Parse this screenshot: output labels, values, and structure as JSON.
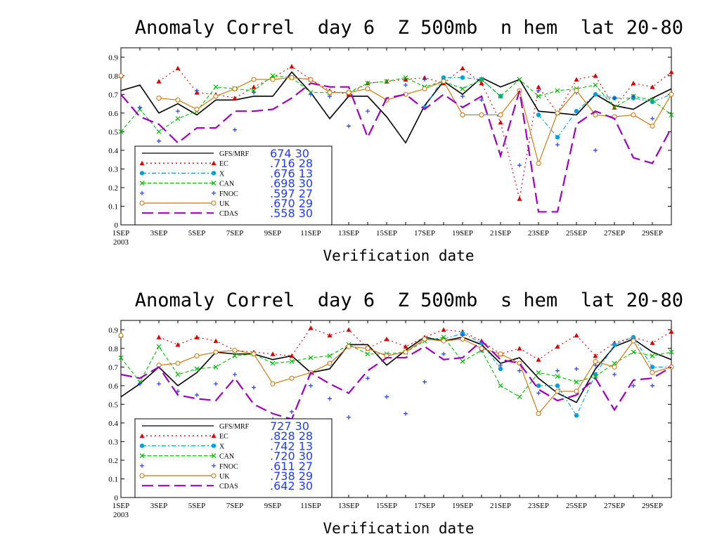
{
  "chart_data": [
    {
      "type": "line",
      "title": "Anomaly Correl  day 6  Z 500mb  n hem  lat 20-80",
      "xlabel": "Verification date",
      "ylabel": "",
      "x_tick_labels": [
        "1SEP",
        "3SEP",
        "5SEP",
        "7SEP",
        "9SEP",
        "11SEP",
        "13SEP",
        "15SEP",
        "17SEP",
        "19SEP",
        "21SEP",
        "23SEP",
        "25SEP",
        "27SEP",
        "29SEP"
      ],
      "x_year_label": "2003",
      "y_tick_labels": [
        "0",
        "0.1",
        "0.2",
        "0.3",
        "0.4",
        "0.5",
        "0.6",
        "0.7",
        "0.8",
        "0.9"
      ],
      "xlim": [
        1,
        30
      ],
      "ylim": [
        0,
        0.95
      ],
      "x": [
        1,
        2,
        3,
        4,
        5,
        6,
        7,
        8,
        9,
        10,
        11,
        12,
        13,
        14,
        15,
        16,
        17,
        18,
        19,
        20,
        21,
        22,
        23,
        24,
        25,
        26,
        27,
        28,
        29,
        30
      ],
      "series": [
        {
          "name": "GFS/MRF",
          "stats": "674  30",
          "color": "#000000",
          "style": "solid",
          "marker": "none",
          "values": [
            0.72,
            0.75,
            0.6,
            0.65,
            0.59,
            0.67,
            0.67,
            0.69,
            0.69,
            0.82,
            0.71,
            0.57,
            0.69,
            0.69,
            0.58,
            0.44,
            0.64,
            0.77,
            0.7,
            0.79,
            0.74,
            0.78,
            0.61,
            0.6,
            0.59,
            0.7,
            0.64,
            0.62,
            0.68,
            0.73
          ]
        },
        {
          "name": "EC",
          "stats": ".716  28",
          "color": "#e00000",
          "style": "dotted",
          "marker": "triangle",
          "values": [
            0.8,
            null,
            0.77,
            0.84,
            0.71,
            0.7,
            0.68,
            0.74,
            0.79,
            0.85,
            0.78,
            0.72,
            0.7,
            0.76,
            0.77,
            0.78,
            0.79,
            0.76,
            0.84,
            0.76,
            0.55,
            0.14,
            0.74,
            0.6,
            0.78,
            0.8,
            0.63,
            0.76,
            0.74,
            0.82
          ]
        },
        {
          "name": "X",
          "stats": ".676  13",
          "color": "#00a0e0",
          "style": "dashdot",
          "marker": "dot",
          "values": [
            null,
            null,
            null,
            null,
            null,
            null,
            null,
            null,
            null,
            null,
            null,
            null,
            null,
            null,
            null,
            null,
            0.63,
            0.79,
            0.79,
            0.78,
            0.69,
            null,
            0.59,
            0.47,
            0.61,
            0.7,
            0.68,
            0.68,
            0.66,
            0.7
          ]
        },
        {
          "name": "CAN",
          "stats": ".698  30",
          "color": "#00c000",
          "style": "dashed",
          "marker": "x",
          "values": [
            0.5,
            0.62,
            0.5,
            0.57,
            0.61,
            0.74,
            0.73,
            0.72,
            0.8,
            0.79,
            0.71,
            0.71,
            0.71,
            0.76,
            0.77,
            0.79,
            0.74,
            0.77,
            0.73,
            0.78,
            0.69,
            0.78,
            0.69,
            0.72,
            0.73,
            0.75,
            0.63,
            0.69,
            0.67,
            0.59
          ]
        },
        {
          "name": "FNOC",
          "stats": ".597  27",
          "color": "#1f3bff",
          "style": "none",
          "marker": "plus",
          "values": [
            null,
            0.63,
            0.45,
            0.61,
            0.72,
            null,
            0.51,
            0.71,
            0.78,
            0.79,
            0.7,
            0.69,
            0.53,
            0.61,
            0.67,
            0.75,
            0.78,
            0.77,
            0.69,
            0.67,
            0.59,
            0.32,
            0.72,
            0.43,
            0.71,
            0.4,
            0.68,
            0.69,
            0.57,
            null
          ]
        },
        {
          "name": "UK",
          "stats": ".670  29",
          "color": "#d07000",
          "style": "solid",
          "marker": "circle",
          "values": [
            0.8,
            null,
            0.68,
            0.67,
            0.62,
            0.69,
            0.73,
            0.78,
            0.78,
            0.79,
            0.78,
            0.71,
            0.71,
            0.73,
            0.67,
            0.7,
            0.73,
            0.77,
            0.59,
            0.59,
            0.59,
            0.72,
            0.33,
            0.6,
            0.72,
            0.59,
            0.58,
            0.59,
            0.53,
            0.7
          ]
        },
        {
          "name": "CDAS",
          "stats": ".558  30",
          "color": "#a000c0",
          "style": "longdash",
          "marker": "none",
          "values": [
            0.7,
            0.58,
            0.54,
            0.44,
            0.52,
            0.52,
            0.61,
            0.61,
            0.62,
            0.68,
            0.76,
            0.74,
            0.74,
            0.47,
            0.68,
            0.7,
            0.62,
            0.7,
            0.63,
            0.69,
            0.37,
            0.72,
            0.07,
            0.07,
            0.54,
            0.61,
            0.57,
            0.36,
            0.33,
            0.52
          ]
        }
      ]
    },
    {
      "type": "line",
      "title": "Anomaly Correl  day 6  Z 500mb  s hem  lat 20-80",
      "xlabel": "Verification date",
      "ylabel": "",
      "x_tick_labels": [
        "1SEP",
        "3SEP",
        "5SEP",
        "7SEP",
        "9SEP",
        "11SEP",
        "13SEP",
        "15SEP",
        "17SEP",
        "19SEP",
        "21SEP",
        "23SEP",
        "25SEP",
        "27SEP",
        "29SEP"
      ],
      "x_year_label": "2003",
      "y_tick_labels": [
        "0",
        "0.1",
        "0.2",
        "0.3",
        "0.4",
        "0.5",
        "0.6",
        "0.7",
        "0.8",
        "0.9"
      ],
      "xlim": [
        1,
        30
      ],
      "ylim": [
        0,
        0.95
      ],
      "x": [
        1,
        2,
        3,
        4,
        5,
        6,
        7,
        8,
        9,
        10,
        11,
        12,
        13,
        14,
        15,
        16,
        17,
        18,
        19,
        20,
        21,
        22,
        23,
        24,
        25,
        26,
        27,
        28,
        29,
        30
      ],
      "series": [
        {
          "name": "GFS/MRF",
          "stats": "727  30",
          "color": "#000000",
          "style": "solid",
          "marker": "none",
          "values": [
            0.54,
            0.61,
            0.7,
            0.6,
            0.67,
            0.78,
            0.77,
            0.77,
            0.74,
            0.76,
            0.67,
            0.69,
            0.82,
            0.82,
            0.71,
            0.79,
            0.86,
            0.84,
            0.86,
            0.82,
            0.72,
            0.75,
            0.64,
            0.56,
            0.51,
            0.69,
            0.81,
            0.85,
            0.78,
            0.74
          ]
        },
        {
          "name": "EC",
          "stats": ".828  28",
          "color": "#e00000",
          "style": "dotted",
          "marker": "triangle",
          "values": [
            0.87,
            null,
            0.86,
            0.82,
            0.86,
            0.84,
            0.79,
            0.78,
            0.77,
            0.76,
            0.91,
            0.87,
            0.9,
            0.8,
            0.85,
            0.81,
            0.86,
            0.9,
            0.89,
            0.84,
            0.77,
            0.8,
            0.74,
            0.81,
            0.87,
            0.76,
            0.83,
            0.86,
            0.83,
            0.89
          ]
        },
        {
          "name": "X",
          "stats": ".742  13",
          "color": "#00a0e0",
          "style": "dashdot",
          "marker": "dot",
          "values": [
            null,
            null,
            null,
            null,
            null,
            null,
            null,
            null,
            null,
            null,
            null,
            null,
            null,
            null,
            null,
            null,
            0.85,
            0.85,
            0.88,
            0.83,
            0.69,
            null,
            0.6,
            0.6,
            0.44,
            0.66,
            0.82,
            0.86,
            0.7,
            0.7
          ]
        },
        {
          "name": "CAN",
          "stats": ".720  30",
          "color": "#00c000",
          "style": "dashed",
          "marker": "x",
          "values": [
            0.75,
            0.62,
            0.81,
            0.66,
            0.69,
            0.7,
            0.76,
            0.77,
            0.72,
            0.73,
            0.75,
            0.76,
            0.82,
            0.77,
            0.77,
            0.78,
            0.84,
            0.86,
            0.73,
            0.79,
            0.6,
            0.54,
            0.67,
            0.65,
            0.62,
            0.65,
            0.72,
            0.78,
            0.76,
            0.78
          ]
        },
        {
          "name": "FNOC",
          "stats": ".611  27",
          "color": "#1f3bff",
          "style": "none",
          "marker": "plus",
          "values": [
            null,
            0.61,
            0.61,
            0.57,
            0.55,
            0.61,
            0.66,
            0.59,
            0.42,
            0.46,
            0.6,
            0.53,
            0.43,
            0.64,
            0.54,
            0.45,
            0.62,
            0.77,
            0.87,
            0.79,
            0.71,
            0.68,
            0.56,
            0.68,
            0.69,
            0.71,
            0.66,
            0.6,
            0.6,
            null
          ]
        },
        {
          "name": "UK",
          "stats": ".738  29",
          "color": "#d07000",
          "style": "solid",
          "marker": "circle",
          "values": [
            0.87,
            null,
            0.71,
            0.72,
            0.76,
            0.78,
            0.79,
            0.77,
            0.61,
            0.64,
            0.67,
            0.72,
            0.81,
            0.8,
            0.76,
            0.78,
            0.85,
            0.84,
            0.85,
            0.8,
            0.77,
            0.72,
            0.45,
            0.57,
            0.57,
            0.73,
            0.7,
            0.84,
            0.67,
            0.7
          ]
        },
        {
          "name": "CDAS",
          "stats": ".642  30",
          "color": "#a000c0",
          "style": "longdash",
          "marker": "none",
          "values": [
            0.66,
            0.64,
            0.7,
            0.55,
            0.53,
            0.52,
            0.64,
            0.5,
            0.45,
            0.42,
            0.67,
            0.61,
            0.56,
            0.68,
            0.75,
            0.75,
            0.81,
            0.74,
            0.75,
            0.84,
            0.74,
            0.72,
            0.58,
            0.52,
            0.55,
            0.64,
            0.47,
            0.63,
            0.64,
            0.7
          ]
        }
      ]
    }
  ]
}
